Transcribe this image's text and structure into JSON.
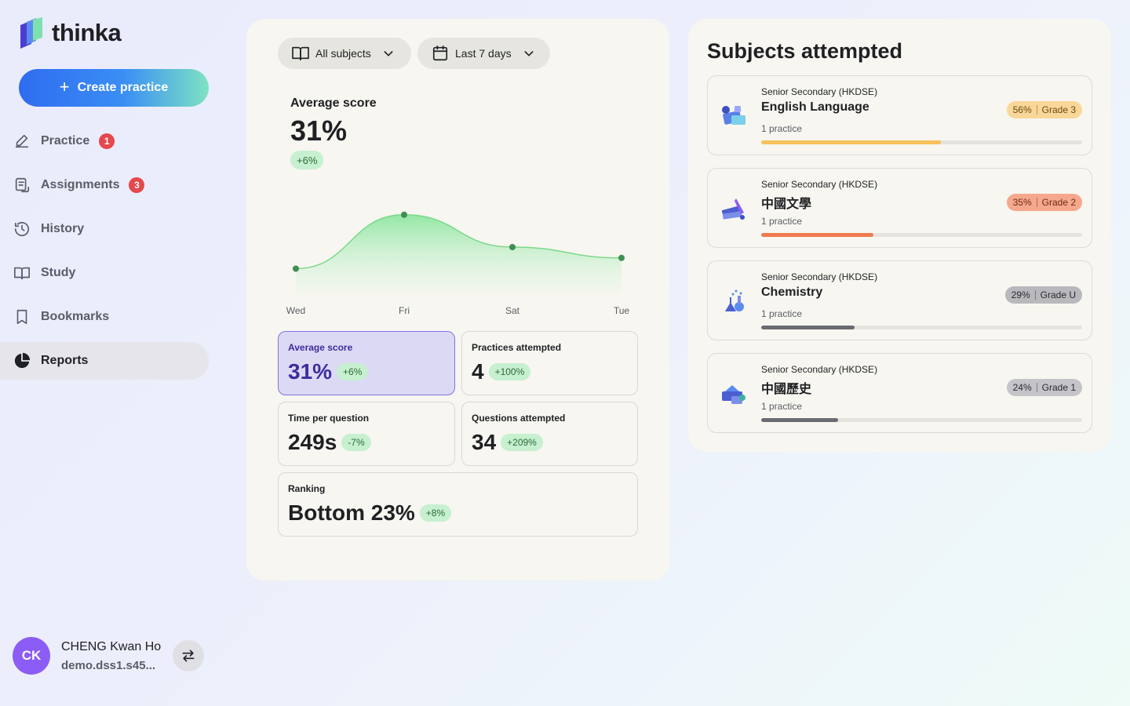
{
  "app": {
    "name": "thinka"
  },
  "sidebar": {
    "create_label": "Create practice",
    "items": [
      {
        "label": "Practice",
        "badge": "1",
        "icon": "pencil-icon"
      },
      {
        "label": "Assignments",
        "badge": "3",
        "icon": "assignment-icon"
      },
      {
        "label": "History",
        "icon": "history-icon"
      },
      {
        "label": "Study",
        "icon": "book-icon"
      },
      {
        "label": "Bookmarks",
        "icon": "bookmark-icon"
      },
      {
        "label": "Reports",
        "icon": "pie-chart-icon",
        "active": true
      }
    ]
  },
  "user": {
    "initials": "CK",
    "name": "CHENG Kwan Ho",
    "email": "demo.dss1.s45..."
  },
  "filters": {
    "subjects": "All subjects",
    "range": "Last 7 days"
  },
  "overview": {
    "label": "Average score",
    "value": "31%",
    "delta": "+6%"
  },
  "chart_data": {
    "type": "area",
    "categories": [
      "Wed",
      "Fri",
      "Sat",
      "Tue"
    ],
    "series": [
      {
        "values": [
          0.2,
          0.7,
          0.4,
          0.3
        ]
      }
    ],
    "grid": false,
    "color": "#6ee08a"
  },
  "stats": {
    "avg": {
      "label": "Average score",
      "value": "31%",
      "delta": "+6%"
    },
    "practices": {
      "label": "Practices attempted",
      "value": "4",
      "delta": "+100%"
    },
    "time": {
      "label": "Time per question",
      "value": "249s",
      "delta": "-7%"
    },
    "questions": {
      "label": "Questions attempted",
      "value": "34",
      "delta": "+209%"
    },
    "ranking": {
      "label": "Ranking",
      "value": "Bottom 23%",
      "delta": "+8%"
    }
  },
  "subjects_panel": {
    "title": "Subjects attempted",
    "items": [
      {
        "level": "Senior Secondary (HKDSE)",
        "name": "English Language",
        "count": "1 practice",
        "percent": "56%",
        "grade": "Grade 3",
        "progress": 0.56,
        "bar_color": "#f7c15c",
        "pill_bg": "#f9d798",
        "pill_fg": "#6b4a10"
      },
      {
        "level": "Senior Secondary (HKDSE)",
        "name": "中國文學",
        "count": "1 practice",
        "percent": "35%",
        "grade": "Grade 2",
        "progress": 0.35,
        "bar_color": "#ef7a4f",
        "pill_bg": "#f6a88c",
        "pill_fg": "#6b2a16"
      },
      {
        "level": "Senior Secondary (HKDSE)",
        "name": "Chemistry",
        "count": "1 practice",
        "percent": "29%",
        "grade": "Grade U",
        "progress": 0.29,
        "bar_color": "#6b6b72",
        "pill_bg": "#b9b8bd",
        "pill_fg": "#2a2a2e"
      },
      {
        "level": "Senior Secondary (HKDSE)",
        "name": "中國歷史",
        "count": "1 practice",
        "percent": "24%",
        "grade": "Grade 1",
        "progress": 0.24,
        "bar_color": "#6b6b72",
        "pill_bg": "#c5c4c9",
        "pill_fg": "#2a2a2e"
      }
    ]
  }
}
